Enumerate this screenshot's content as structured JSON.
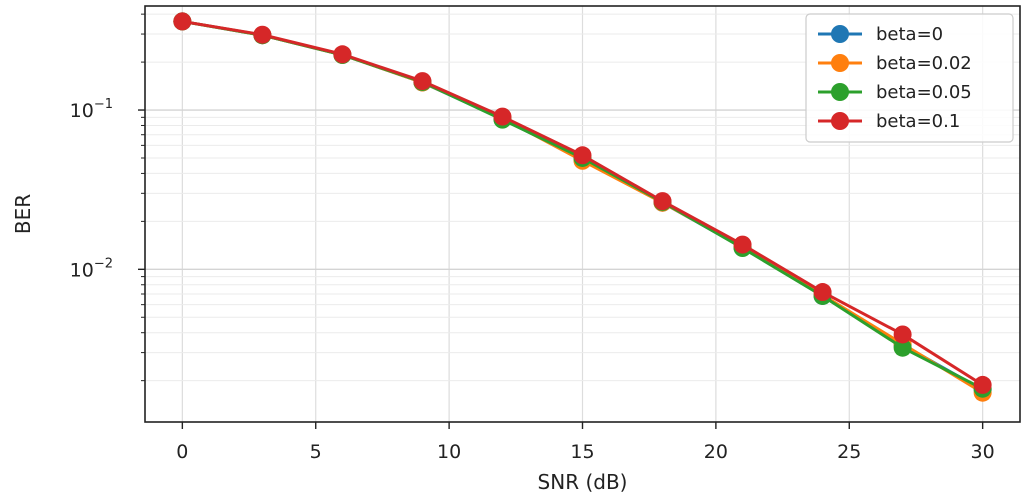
{
  "chart_data": {
    "type": "line",
    "xlabel": "SNR (dB)",
    "ylabel": "BER",
    "yscale": "log",
    "grid": true,
    "grid_minor": true,
    "legend_placement": "top-right",
    "xlim": [
      -1.4,
      31.4
    ],
    "ylim": [
      0.0011,
      0.45
    ],
    "xticks": [
      0,
      5,
      10,
      15,
      20,
      25,
      30
    ],
    "yticks": [
      {
        "base": "10",
        "exp": "−1",
        "value": 0.1
      },
      {
        "base": "10",
        "exp": "−2",
        "value": 0.01
      }
    ],
    "x": [
      0,
      3,
      6,
      9,
      12,
      15,
      18,
      21,
      24,
      27,
      30
    ],
    "series": [
      {
        "name": "beta=0",
        "color": "#1f77b4",
        "values": [
          0.36,
          0.295,
          0.222,
          0.149,
          0.088,
          0.049,
          0.0262,
          0.0137,
          0.0068,
          0.00335,
          0.00175
        ]
      },
      {
        "name": "beta=0.02",
        "color": "#ff7f0e",
        "values": [
          0.36,
          0.295,
          0.222,
          0.149,
          0.089,
          0.048,
          0.0262,
          0.0138,
          0.0069,
          0.0034,
          0.00168
        ]
      },
      {
        "name": "beta=0.05",
        "color": "#2ca02c",
        "values": [
          0.36,
          0.295,
          0.222,
          0.15,
          0.087,
          0.05,
          0.0265,
          0.0136,
          0.0068,
          0.00322,
          0.00178
        ]
      },
      {
        "name": "beta=0.1",
        "color": "#d62728",
        "values": [
          0.36,
          0.297,
          0.224,
          0.152,
          0.091,
          0.052,
          0.0268,
          0.0143,
          0.0072,
          0.0039,
          0.00188
        ]
      }
    ]
  }
}
